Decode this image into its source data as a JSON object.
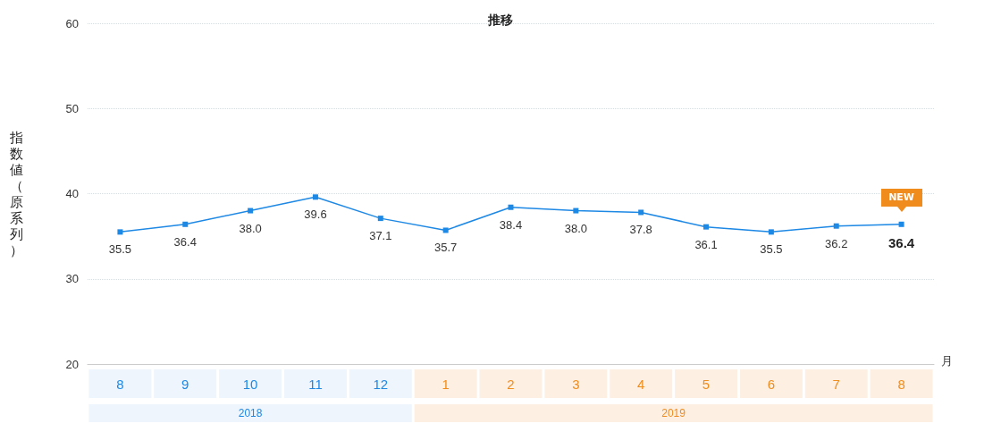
{
  "chart_data": {
    "type": "line",
    "title": "推移",
    "xlabel": "月",
    "ylabel": "指数値（原系列）",
    "categories": [
      "8",
      "9",
      "10",
      "11",
      "12",
      "1",
      "2",
      "3",
      "4",
      "5",
      "6",
      "7",
      "8"
    ],
    "series": [
      {
        "color": "#1e88e5",
        "values": [
          35.5,
          36.4,
          38.0,
          39.6,
          37.1,
          35.7,
          38.4,
          38.0,
          37.8,
          36.1,
          35.5,
          36.2,
          36.4
        ]
      }
    ],
    "ylim": [
      20,
      60
    ],
    "yticks": [
      20,
      30,
      40,
      50,
      60
    ],
    "grid": "y",
    "marker": "square",
    "line_style": "solid",
    "value_labels": [
      "35.5",
      "36.4",
      "38.0",
      "39.6",
      "37.1",
      "35.7",
      "38.4",
      "38.0",
      "37.8",
      "36.1",
      "35.5",
      "36.2",
      "36.4"
    ],
    "annotations": [
      "2018",
      "2019",
      "NEW"
    ]
  }
}
